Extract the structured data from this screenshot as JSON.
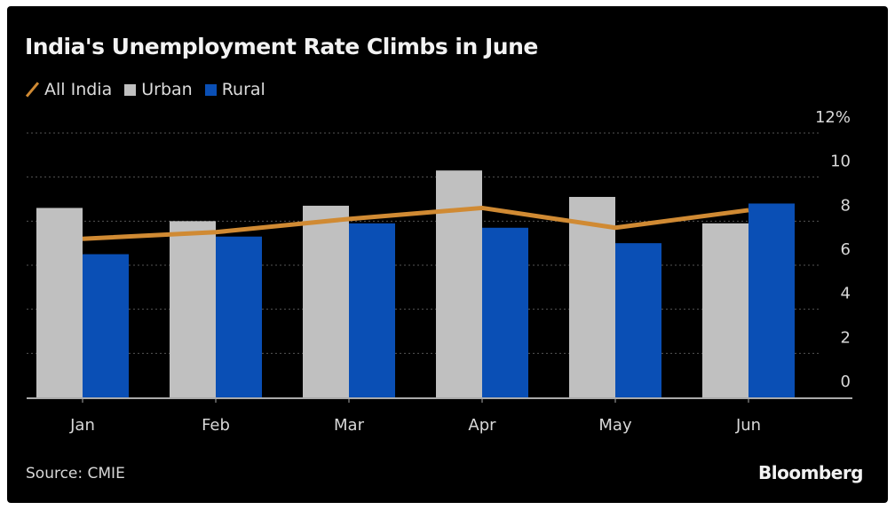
{
  "title": "India's Unemployment Rate Climbs in June",
  "legend": [
    {
      "name": "All India",
      "kind": "line",
      "color": "#d08a33"
    },
    {
      "name": "Urban",
      "kind": "bar",
      "color": "#c0c0c0"
    },
    {
      "name": "Rural",
      "kind": "bar",
      "color": "#0a4fb5"
    }
  ],
  "source": "Source: CMIE",
  "brand": "Bloomberg",
  "chart_data": {
    "type": "bar",
    "title": "India's Unemployment Rate Climbs in June",
    "xlabel": "",
    "ylabel": "",
    "categories": [
      "Jan",
      "Feb",
      "Mar",
      "Apr",
      "May",
      "Jun"
    ],
    "series": [
      {
        "name": "Urban",
        "type": "bar",
        "color": "#c0c0c0",
        "values": [
          8.6,
          8.0,
          8.7,
          10.3,
          9.1,
          7.9
        ]
      },
      {
        "name": "Rural",
        "type": "bar",
        "color": "#0a4fb5",
        "values": [
          6.5,
          7.3,
          7.9,
          7.7,
          7.0,
          8.8
        ]
      },
      {
        "name": "All India",
        "type": "line",
        "color": "#d08a33",
        "values": [
          7.2,
          7.5,
          8.1,
          8.6,
          7.7,
          8.5
        ]
      }
    ],
    "ylim": [
      0,
      12
    ],
    "yticks": [
      0,
      2,
      4,
      6,
      8,
      10,
      12
    ],
    "ytick_labels": [
      "0",
      "2",
      "4",
      "6",
      "8",
      "10",
      "12%"
    ],
    "y_axis_side": "right",
    "grid": true,
    "legend_position": "top-left"
  }
}
